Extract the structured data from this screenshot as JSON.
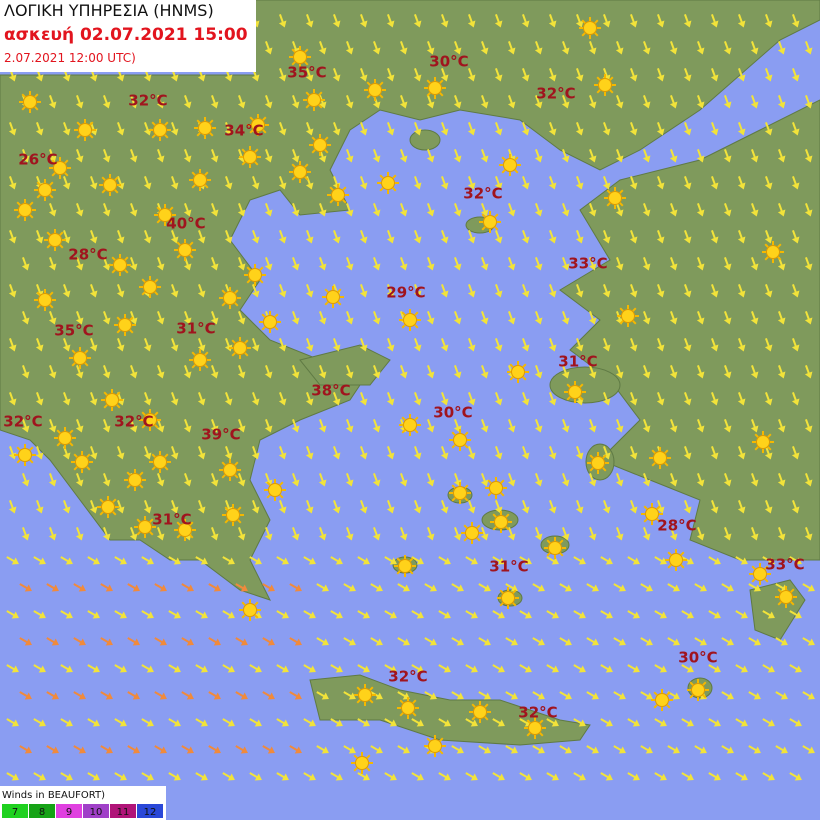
{
  "header": {
    "line1": "ΛΟΓΙΚΗ ΥΠΗΡΕΣΙΑ (HNMS)",
    "line2": "ασκευή 02.07.2021 15:00",
    "line3": "2.07.2021 12:00 UTC)"
  },
  "temperatures": [
    "35°C",
    "30°C",
    "32°C",
    "32°C",
    "34°C",
    "26°C",
    "32°C",
    "40°C",
    "28°C",
    "33°C",
    "29°C",
    "35°C",
    "31°C",
    "31°C",
    "38°C",
    "30°C",
    "32°C",
    "32°C",
    "39°C",
    "31°C",
    "28°C",
    "31°C",
    "33°C",
    "30°C",
    "32°C",
    "32°C"
  ],
  "legend": {
    "title": "Winds in BEAUFORT)",
    "levels": [
      "7",
      "8",
      "9",
      "10",
      "11",
      "12"
    ]
  }
}
